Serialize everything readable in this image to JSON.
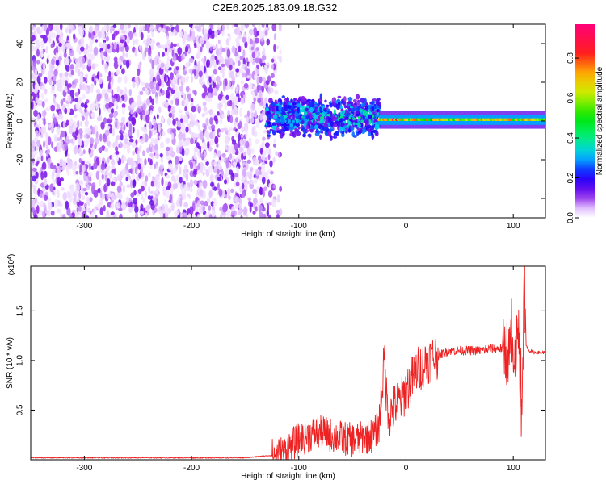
{
  "title": "C2E6.2025.183.09.18.G32",
  "chart_data": [
    {
      "type": "heatmap",
      "xlabel": "Height of straight line (km)",
      "ylabel": "Frequency (Hz)",
      "xlim": [
        -350,
        130
      ],
      "ylim": [
        -50,
        50
      ],
      "xticks": [
        -300,
        -200,
        -100,
        0,
        100
      ],
      "yticks": [
        -40,
        -20,
        0,
        20,
        40
      ],
      "colorbar": {
        "label": "Normalized spectral amplitude",
        "ticks": [
          0.0,
          0.2,
          0.4,
          0.6,
          0.8
        ],
        "range": [
          0,
          0.97
        ]
      },
      "regions": [
        {
          "x_range": [
            -350,
            -125
          ],
          "freq_range": [
            -50,
            50
          ],
          "amplitude": [
            0.02,
            0.15
          ],
          "description": "broadband noise"
        },
        {
          "x_range": [
            -130,
            -25
          ],
          "freq_range": [
            -10,
            12
          ],
          "amplitude": [
            0.1,
            0.45
          ],
          "description": "signal cluster"
        },
        {
          "x_range": [
            -25,
            130
          ],
          "freq_range": [
            -2,
            3
          ],
          "amplitude": [
            0.5,
            0.95
          ],
          "description": "carrier line"
        }
      ]
    },
    {
      "type": "line",
      "xlabel": "Height of straight line (km)",
      "ylabel": "SNR (10 * v/v)",
      "y_multiplier": "(x10",
      "y_exponent": "4",
      "xlim": [
        -350,
        130
      ],
      "ylim": [
        0,
        1.95
      ],
      "xticks": [
        -300,
        -200,
        -100,
        0,
        100
      ],
      "yticks": [
        0.5,
        1.0,
        1.5
      ],
      "color": "#ee2222",
      "series": [
        {
          "x": [
            -350,
            -300,
            -250,
            -200,
            -150,
            -120,
            -110,
            -100,
            -90,
            -80,
            -70,
            -60,
            -50,
            -40,
            -30,
            -25,
            -22,
            -20,
            -18,
            -15,
            -10,
            -5,
            0,
            10,
            20,
            30,
            40,
            50,
            60,
            70,
            80,
            90,
            95,
            100,
            103,
            106,
            108,
            110,
            112,
            115,
            120,
            130
          ],
          "y": [
            0.02,
            0.02,
            0.02,
            0.02,
            0.02,
            0.05,
            0.12,
            0.2,
            0.25,
            0.28,
            0.25,
            0.22,
            0.2,
            0.22,
            0.25,
            0.35,
            0.8,
            1.0,
            0.6,
            0.45,
            0.55,
            0.6,
            0.7,
            0.9,
            1.0,
            1.05,
            1.1,
            1.1,
            1.1,
            1.1,
            1.12,
            1.12,
            1.1,
            1.05,
            1.2,
            0.9,
            0.3,
            1.9,
            1.15,
            1.1,
            1.08,
            1.08
          ]
        }
      ]
    }
  ]
}
